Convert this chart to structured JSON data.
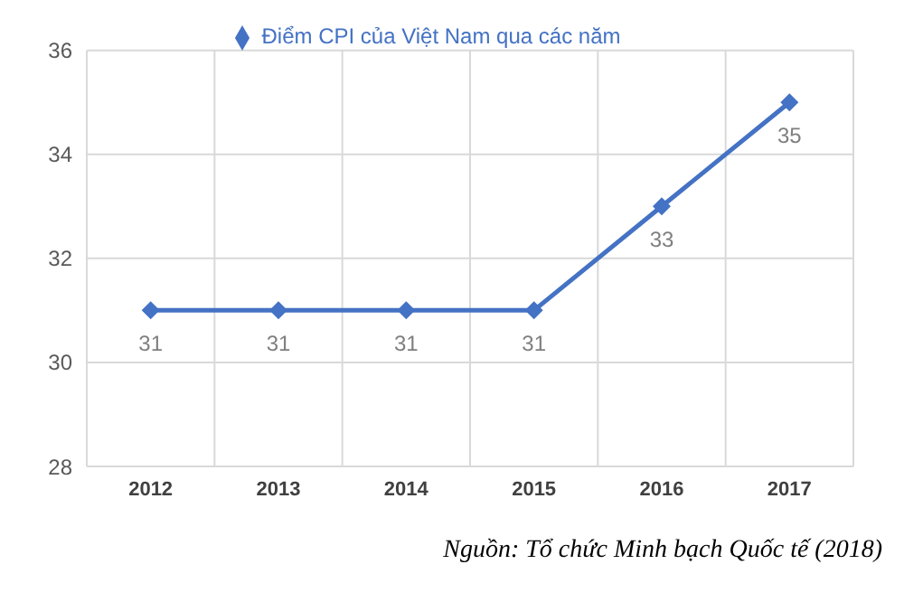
{
  "chart_data": {
    "type": "line",
    "categories": [
      "2012",
      "2013",
      "2014",
      "2015",
      "2016",
      "2017"
    ],
    "series": [
      {
        "name": "Điểm CPI của Việt Nam qua các năm",
        "color": "#4472c4",
        "values": [
          31,
          31,
          31,
          31,
          33,
          35
        ]
      }
    ],
    "ylim": [
      28,
      36
    ],
    "yticks": [
      28,
      30,
      32,
      34,
      36
    ],
    "grid": true,
    "legend": "top",
    "marker": "diamond",
    "data_labels": true,
    "annotations": [
      "Nguồn: Tổ chức Minh bạch Quốc tế (2018)"
    ]
  }
}
